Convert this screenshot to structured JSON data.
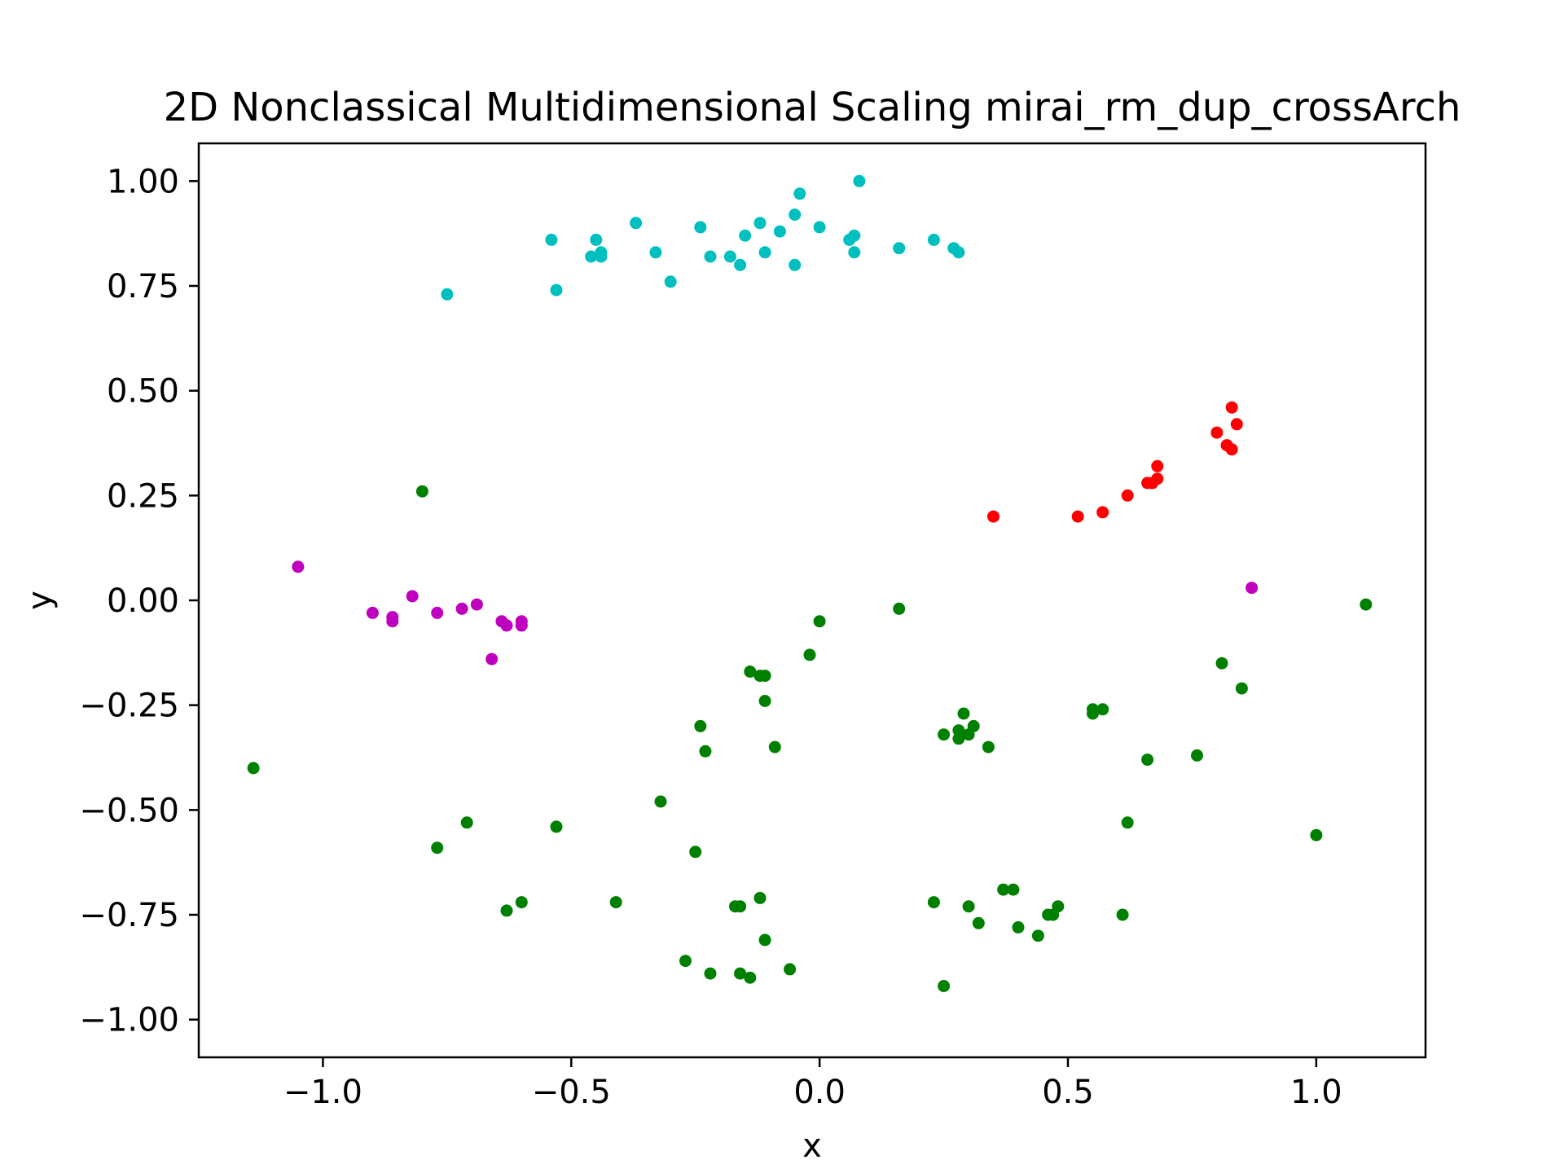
{
  "chart_data": {
    "type": "scatter",
    "title": "2D Nonclassical Multidimensional Scaling mirai_rm_dup_crossArch",
    "xlabel": "x",
    "ylabel": "y",
    "xlim": [
      -1.25,
      1.22
    ],
    "ylim": [
      -1.09,
      1.09
    ],
    "xticks": [
      {
        "value": -1.0,
        "label": "−1.0"
      },
      {
        "value": -0.5,
        "label": "−0.5"
      },
      {
        "value": 0.0,
        "label": "0.0"
      },
      {
        "value": 0.5,
        "label": "0.5"
      },
      {
        "value": 1.0,
        "label": "1.0"
      }
    ],
    "yticks": [
      {
        "value": 1.0,
        "label": "1.00"
      },
      {
        "value": 0.75,
        "label": "0.75"
      },
      {
        "value": 0.5,
        "label": "0.50"
      },
      {
        "value": 0.25,
        "label": "0.25"
      },
      {
        "value": 0.0,
        "label": "0.00"
      },
      {
        "value": -0.25,
        "label": "−0.25"
      },
      {
        "value": -0.5,
        "label": "−0.50"
      },
      {
        "value": -0.75,
        "label": "−0.75"
      },
      {
        "value": -1.0,
        "label": "−1.00"
      }
    ],
    "grid": false,
    "series": [
      {
        "color": "#00bfbf",
        "points": [
          [
            -0.75,
            0.73
          ],
          [
            -0.54,
            0.86
          ],
          [
            -0.53,
            0.74
          ],
          [
            -0.46,
            0.82
          ],
          [
            -0.45,
            0.86
          ],
          [
            -0.44,
            0.83
          ],
          [
            -0.44,
            0.82
          ],
          [
            -0.37,
            0.9
          ],
          [
            -0.33,
            0.83
          ],
          [
            -0.3,
            0.76
          ],
          [
            -0.24,
            0.89
          ],
          [
            -0.22,
            0.82
          ],
          [
            -0.18,
            0.82
          ],
          [
            -0.16,
            0.8
          ],
          [
            -0.15,
            0.87
          ],
          [
            -0.12,
            0.9
          ],
          [
            -0.11,
            0.83
          ],
          [
            -0.08,
            0.88
          ],
          [
            -0.05,
            0.92
          ],
          [
            -0.05,
            0.8
          ],
          [
            -0.04,
            0.97
          ],
          [
            0.0,
            0.89
          ],
          [
            0.06,
            0.86
          ],
          [
            0.07,
            0.87
          ],
          [
            0.07,
            0.83
          ],
          [
            0.08,
            1.0
          ],
          [
            0.16,
            0.84
          ],
          [
            0.23,
            0.86
          ],
          [
            0.27,
            0.84
          ],
          [
            0.28,
            0.83
          ]
        ]
      },
      {
        "color": "#ff0000",
        "points": [
          [
            0.35,
            0.2
          ],
          [
            0.52,
            0.2
          ],
          [
            0.57,
            0.21
          ],
          [
            0.62,
            0.25
          ],
          [
            0.66,
            0.28
          ],
          [
            0.67,
            0.28
          ],
          [
            0.68,
            0.32
          ],
          [
            0.68,
            0.29
          ],
          [
            0.8,
            0.4
          ],
          [
            0.82,
            0.37
          ],
          [
            0.83,
            0.36
          ],
          [
            0.83,
            0.46
          ],
          [
            0.84,
            0.42
          ]
        ]
      },
      {
        "color": "#bf00bf",
        "points": [
          [
            -1.05,
            0.08
          ],
          [
            -0.9,
            -0.03
          ],
          [
            -0.86,
            -0.04
          ],
          [
            -0.86,
            -0.05
          ],
          [
            -0.82,
            0.01
          ],
          [
            -0.77,
            -0.03
          ],
          [
            -0.72,
            -0.02
          ],
          [
            -0.69,
            -0.01
          ],
          [
            -0.66,
            -0.14
          ],
          [
            -0.64,
            -0.05
          ],
          [
            -0.63,
            -0.06
          ],
          [
            -0.6,
            -0.05
          ],
          [
            -0.6,
            -0.06
          ],
          [
            0.87,
            0.03
          ]
        ]
      },
      {
        "color": "#008000",
        "points": [
          [
            -1.14,
            -0.4
          ],
          [
            -0.8,
            0.26
          ],
          [
            -0.77,
            -0.59
          ],
          [
            -0.71,
            -0.53
          ],
          [
            -0.63,
            -0.74
          ],
          [
            -0.6,
            -0.72
          ],
          [
            -0.53,
            -0.54
          ],
          [
            -0.41,
            -0.72
          ],
          [
            -0.32,
            -0.48
          ],
          [
            -0.27,
            -0.86
          ],
          [
            -0.25,
            -0.6
          ],
          [
            -0.24,
            -0.3
          ],
          [
            -0.23,
            -0.36
          ],
          [
            -0.22,
            -0.89
          ],
          [
            -0.17,
            -0.73
          ],
          [
            -0.16,
            -0.73
          ],
          [
            -0.16,
            -0.89
          ],
          [
            -0.14,
            -0.17
          ],
          [
            -0.14,
            -0.9
          ],
          [
            -0.12,
            -0.18
          ],
          [
            -0.11,
            -0.24
          ],
          [
            -0.11,
            -0.18
          ],
          [
            -0.11,
            -0.81
          ],
          [
            -0.12,
            -0.71
          ],
          [
            -0.09,
            -0.35
          ],
          [
            -0.06,
            -0.88
          ],
          [
            -0.02,
            -0.13
          ],
          [
            0.0,
            -0.05
          ],
          [
            0.16,
            -0.02
          ],
          [
            0.23,
            -0.72
          ],
          [
            0.25,
            -0.32
          ],
          [
            0.25,
            -0.92
          ],
          [
            0.28,
            -0.33
          ],
          [
            0.28,
            -0.31
          ],
          [
            0.29,
            -0.27
          ],
          [
            0.3,
            -0.32
          ],
          [
            0.3,
            -0.73
          ],
          [
            0.31,
            -0.3
          ],
          [
            0.32,
            -0.77
          ],
          [
            0.34,
            -0.35
          ],
          [
            0.37,
            -0.69
          ],
          [
            0.39,
            -0.69
          ],
          [
            0.4,
            -0.78
          ],
          [
            0.44,
            -0.8
          ],
          [
            0.46,
            -0.75
          ],
          [
            0.47,
            -0.75
          ],
          [
            0.48,
            -0.73
          ],
          [
            0.55,
            -0.27
          ],
          [
            0.55,
            -0.26
          ],
          [
            0.57,
            -0.26
          ],
          [
            0.61,
            -0.75
          ],
          [
            0.62,
            -0.53
          ],
          [
            0.66,
            -0.38
          ],
          [
            0.76,
            -0.37
          ],
          [
            0.81,
            -0.15
          ],
          [
            0.85,
            -0.21
          ],
          [
            1.0,
            -0.56
          ],
          [
            1.1,
            -0.01
          ]
        ]
      }
    ]
  }
}
